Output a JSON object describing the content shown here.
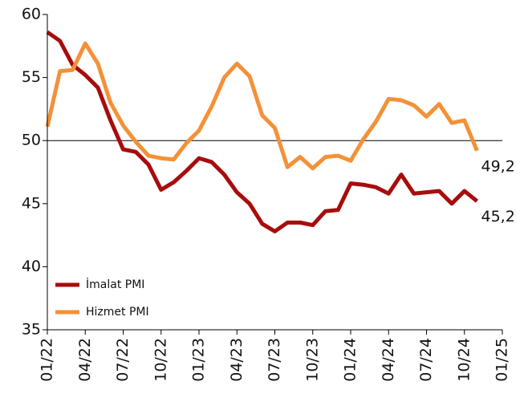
{
  "chart_data": {
    "type": "line",
    "categories": [
      "01/22",
      null,
      null,
      "04/22",
      null,
      null,
      "07/22",
      null,
      null,
      "10/22",
      null,
      null,
      "01/23",
      null,
      null,
      "04/23",
      null,
      null,
      "07/23",
      null,
      null,
      "10/23",
      null,
      null,
      "01/24",
      null,
      null,
      "04/24",
      null,
      null,
      "07/24",
      null,
      null,
      "10/24",
      null,
      null,
      "01/25"
    ],
    "series": [
      {
        "name": "İmalat PMI",
        "color": "#a80c0c",
        "values": [
          58.6,
          57.9,
          56.0,
          55.2,
          54.2,
          51.6,
          49.3,
          49.1,
          48.1,
          46.1,
          46.7,
          47.6,
          48.6,
          48.3,
          47.3,
          45.9,
          45.0,
          43.4,
          42.8,
          43.5,
          43.5,
          43.3,
          44.4,
          44.5,
          46.6,
          46.5,
          46.3,
          45.8,
          47.3,
          45.8,
          45.9,
          46.0,
          45.0,
          46.0,
          45.2,
          null,
          null
        ],
        "value_labels": [
          null,
          null,
          null,
          null,
          null,
          null,
          null,
          null,
          null,
          null,
          null,
          null,
          null,
          null,
          null,
          null,
          null,
          null,
          null,
          null,
          null,
          null,
          null,
          null,
          null,
          null,
          null,
          null,
          null,
          null,
          null,
          null,
          null,
          null,
          "45,2",
          null,
          null
        ]
      },
      {
        "name": "Hizmet PMI",
        "color": "#f39138",
        "values": [
          51.1,
          55.5,
          55.6,
          57.7,
          56.1,
          53.0,
          51.2,
          49.9,
          48.8,
          48.6,
          48.5,
          49.8,
          50.8,
          52.7,
          55.0,
          56.1,
          55.1,
          52.0,
          51.0,
          47.9,
          48.7,
          47.8,
          48.7,
          48.8,
          48.4,
          50.1,
          51.5,
          53.3,
          53.2,
          52.8,
          51.9,
          52.9,
          51.4,
          51.6,
          49.2,
          null,
          null
        ],
        "value_labels": [
          null,
          null,
          null,
          null,
          null,
          null,
          null,
          null,
          null,
          null,
          null,
          null,
          null,
          null,
          null,
          null,
          null,
          null,
          null,
          null,
          null,
          null,
          null,
          null,
          null,
          null,
          null,
          null,
          null,
          null,
          null,
          null,
          null,
          null,
          "49,2",
          null,
          null
        ]
      }
    ],
    "ylim": [
      35,
      60
    ],
    "yticks": [
      35,
      40,
      45,
      50,
      55,
      60
    ],
    "hline": 50,
    "grid": false,
    "legend": "lower left"
  }
}
